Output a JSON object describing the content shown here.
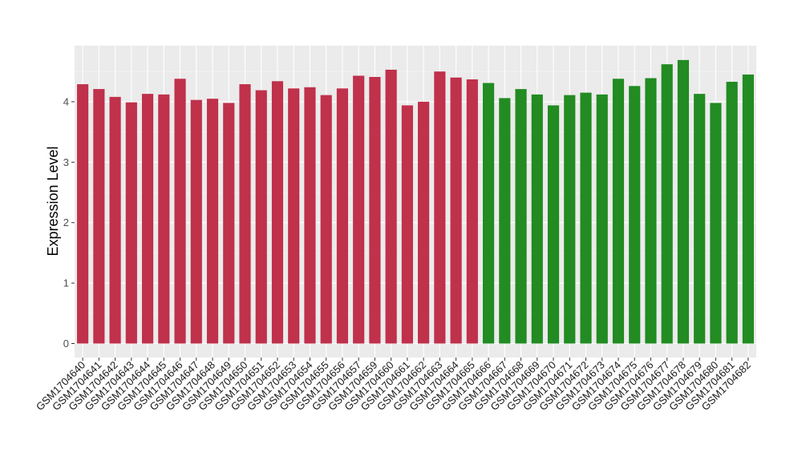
{
  "chart_data": {
    "type": "bar",
    "title": "",
    "xlabel": "",
    "ylabel": "Expression Level",
    "ylim": [
      0,
      4.85
    ],
    "yticks": [
      0,
      1,
      2,
      3,
      4
    ],
    "grid": true,
    "categories": [
      "GSM1704640",
      "GSM1704641",
      "GSM1704642",
      "GSM1704643",
      "GSM1704644",
      "GSM1704645",
      "GSM1704646",
      "GSM1704647",
      "GSM1704648",
      "GSM1704649",
      "GSM1704650",
      "GSM1704651",
      "GSM1704652",
      "GSM1704653",
      "GSM1704654",
      "GSM1704655",
      "GSM1704656",
      "GSM1704657",
      "GSM1704659",
      "GSM1704660",
      "GSM1704661",
      "GSM1704662",
      "GSM1704663",
      "GSM1704664",
      "GSM1704665",
      "GSM1704666",
      "GSM1704667",
      "GSM1704668",
      "GSM1704669",
      "GSM1704670",
      "GSM1704671",
      "GSM1704672",
      "GSM1704673",
      "GSM1704674",
      "GSM1704675",
      "GSM1704676",
      "GSM1704677",
      "GSM1704678",
      "GSM1704679",
      "GSM1704680",
      "GSM1704681",
      "GSM1704682"
    ],
    "values": [
      4.29,
      4.21,
      4.08,
      3.99,
      4.13,
      4.12,
      4.38,
      4.03,
      4.05,
      3.98,
      4.29,
      4.19,
      4.34,
      4.22,
      4.24,
      4.11,
      4.22,
      4.43,
      4.41,
      4.53,
      3.94,
      4.0,
      4.5,
      4.4,
      4.37,
      4.31,
      4.06,
      4.21,
      4.12,
      3.94,
      4.11,
      4.15,
      4.12,
      4.38,
      4.26,
      4.39,
      4.62,
      4.69,
      4.13,
      3.98,
      4.33,
      4.45
    ],
    "bar_colors": [
      "#c0314b",
      "#c0314b",
      "#c0314b",
      "#c0314b",
      "#c0314b",
      "#c0314b",
      "#c0314b",
      "#c0314b",
      "#c0314b",
      "#c0314b",
      "#c0314b",
      "#c0314b",
      "#c0314b",
      "#c0314b",
      "#c0314b",
      "#c0314b",
      "#c0314b",
      "#c0314b",
      "#c0314b",
      "#c0314b",
      "#c0314b",
      "#c0314b",
      "#c0314b",
      "#c0314b",
      "#c0314b",
      "#228b22",
      "#228b22",
      "#228b22",
      "#228b22",
      "#228b22",
      "#228b22",
      "#228b22",
      "#228b22",
      "#228b22",
      "#228b22",
      "#228b22",
      "#228b22",
      "#228b22",
      "#228b22",
      "#228b22",
      "#228b22",
      "#228b22"
    ],
    "colors": {
      "panel_background": "#ebebeb",
      "grid_major": "#ffffff",
      "grid_minor": "#f5f5f5",
      "group_1": "#c0314b",
      "group_2": "#228b22"
    }
  }
}
